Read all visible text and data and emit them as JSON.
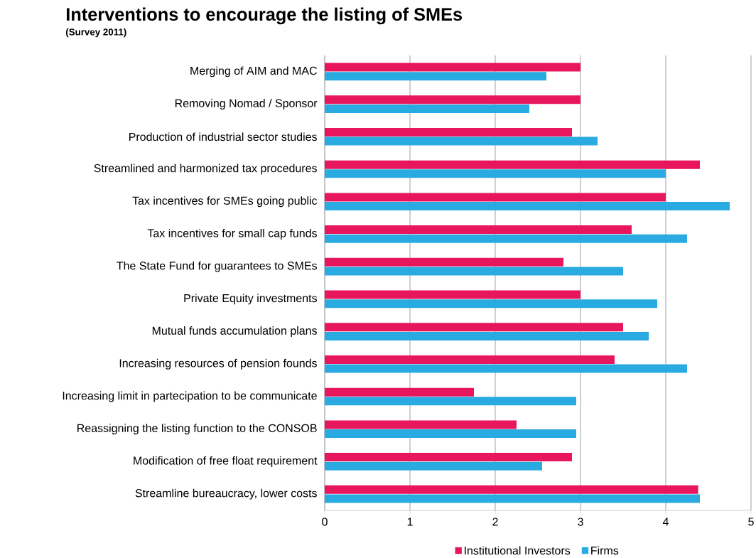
{
  "chart_data": {
    "type": "bar",
    "orientation": "horizontal",
    "title": "Interventions to encourage the listing of SMEs",
    "subtitle": "(Survey 2011)",
    "categories": [
      "Merging of AIM and MAC",
      "Removing Nomad / Sponsor",
      "Production of industrial sector studies",
      "Streamlined and harmonized tax procedures",
      "Tax incentives for SMEs going public",
      "Tax incentives for small cap funds",
      "The State Fund for guarantees to SMEs",
      "Private Equity investments",
      "Mutual funds accumulation plans",
      "Increasing resources of pension founds",
      "Increasing limit in partecipation to be communicate",
      "Reassigning the listing function to the CONSOB",
      "Modification of free float requirement",
      "Streamline bureaucracy, lower costs"
    ],
    "series": [
      {
        "name": "Institutional Investors",
        "color": "#e8175d",
        "values": [
          3.0,
          3.0,
          2.9,
          4.4,
          4.0,
          3.6,
          2.8,
          3.0,
          3.5,
          3.4,
          1.75,
          2.25,
          2.9,
          4.38
        ]
      },
      {
        "name": "Firms",
        "color": "#29abe2",
        "values": [
          2.6,
          2.4,
          3.2,
          4.0,
          4.75,
          4.25,
          3.5,
          3.9,
          3.8,
          4.25,
          2.95,
          2.95,
          2.55,
          4.4
        ]
      }
    ],
    "xlim": [
      0,
      5
    ],
    "xticks": [
      0,
      1,
      2,
      3,
      4,
      5
    ],
    "grid": "x",
    "legend": "bottom"
  }
}
